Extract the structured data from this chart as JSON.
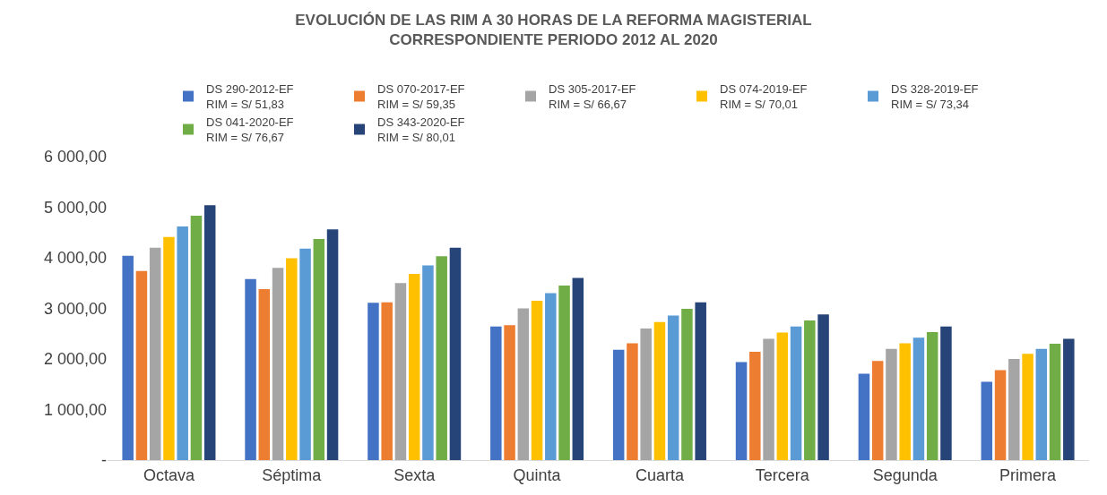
{
  "chart_data": {
    "type": "bar",
    "title": "EVOLUCIÓN DE LAS RIM A 30 HORAS DE LA REFORMA MAGISTERIAL\nCORRESPONDIENTE PERIODO 2012 AL 2020",
    "categories": [
      "Octava",
      "Séptima",
      "Sexta",
      "Quinta",
      "Cuarta",
      "Tercera",
      "Segunda",
      "Primera"
    ],
    "series": [
      {
        "name": "DS 290-2012-EF\nRIM = S/ 51,83",
        "color": "#4472c4",
        "values": [
          4040,
          3580,
          3110,
          2640,
          2180,
          1940,
          1710,
          1550
        ]
      },
      {
        "name": "DS 070-2017-EF\nRIM = S/ 59,35",
        "color": "#ed7d31",
        "values": [
          3740,
          3380,
          3120,
          2670,
          2310,
          2140,
          1960,
          1780
        ]
      },
      {
        "name": "DS 305-2017-EF\nRIM = S/ 66,67",
        "color": "#a5a5a5",
        "values": [
          4200,
          3800,
          3500,
          3000,
          2600,
          2400,
          2200,
          2000
        ]
      },
      {
        "name": "DS 074-2019-EF\nRIM = S/ 70,01",
        "color": "#ffc000",
        "values": [
          4410,
          3990,
          3680,
          3150,
          2730,
          2520,
          2310,
          2100
        ]
      },
      {
        "name": "DS 328-2019-EF\nRIM = S/ 73,34",
        "color": "#5b9bd5",
        "values": [
          4620,
          4180,
          3850,
          3300,
          2860,
          2640,
          2420,
          2200
        ]
      },
      {
        "name": "DS 041-2020-EF\nRIM = S/ 76,67",
        "color": "#70ad47",
        "values": [
          4830,
          4370,
          4030,
          3450,
          2990,
          2760,
          2530,
          2300
        ]
      },
      {
        "name": "DS 343-2020-EF\nRIM = S/ 80,01",
        "color": "#264478",
        "values": [
          5040,
          4560,
          4200,
          3600,
          3120,
          2880,
          2640,
          2400
        ]
      }
    ],
    "ylim": [
      0,
      6000
    ],
    "yticks": [
      {
        "value": 0,
        "label": "-"
      },
      {
        "value": 1000,
        "label": "1 000,00"
      },
      {
        "value": 2000,
        "label": "2 000,00"
      },
      {
        "value": 3000,
        "label": "3 000,00"
      },
      {
        "value": 4000,
        "label": "4 000,00"
      },
      {
        "value": 5000,
        "label": "5 000,00"
      },
      {
        "value": 6000,
        "label": "6 000,00"
      }
    ],
    "grid": false,
    "legend": "top"
  }
}
